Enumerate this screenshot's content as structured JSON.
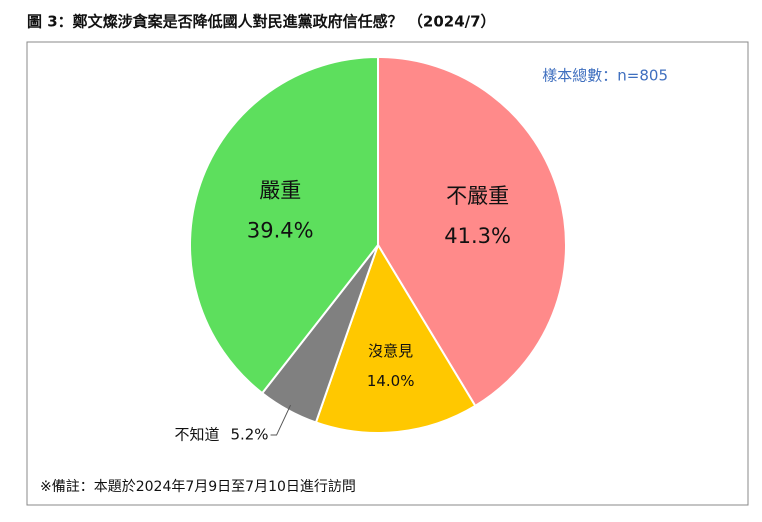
{
  "chart_data": {
    "type": "pie",
    "title": "圖 3：鄭文燦涉貪案是否降低國人對民進黨政府信任感？ （2024/7）",
    "note": "樣本總數：n=805",
    "footnote": "※備註：本題於2024年7月9日至7月10日進行訪問",
    "categories": [
      "不嚴重",
      "沒意見",
      "不知道",
      "嚴重"
    ],
    "values": [
      41.3,
      14.0,
      5.2,
      39.4
    ],
    "value_labels": [
      "41.3%",
      "14.0%",
      "5.2%",
      "39.4%"
    ],
    "colors": [
      "#ff8a8a",
      "#ffc800",
      "#808080",
      "#5ddf5d"
    ]
  }
}
